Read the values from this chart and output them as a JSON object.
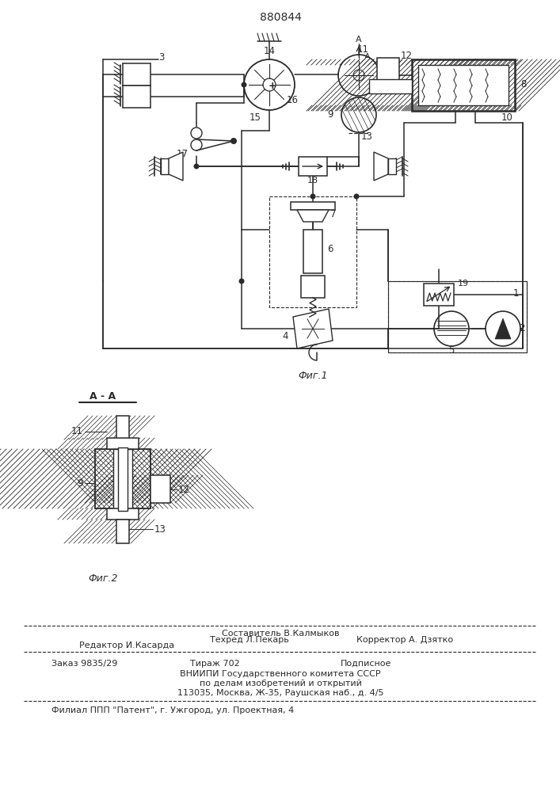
{
  "patent_number": "880844",
  "bg_color": "#ffffff",
  "line_color": "#2a2a2a",
  "fig1_caption": "Фиг.1",
  "fig2_caption": "Фиг.2",
  "section_label": "A - A",
  "footer_line1": "Составитель В.Калмыков",
  "footer_line2a": "Редактор И.Касарда",
  "footer_line2b": "Техред Л.Пекарь",
  "footer_line2c": "Корректор А. Дзятко",
  "footer_line3a": "Заказ 9835/29",
  "footer_line3b": "Тираж 702",
  "footer_line3c": "Подписное",
  "footer_line4": "ВНИИПИ Государственного комитета СССР",
  "footer_line5": "по делам изобретений и открытий",
  "footer_line6": "113035, Москва, Ж-35, Раушская наб., д. 4/5",
  "footer_line7": "Филиал ППП \"Патент\", г. Ужгород, ул. Проектная, 4"
}
